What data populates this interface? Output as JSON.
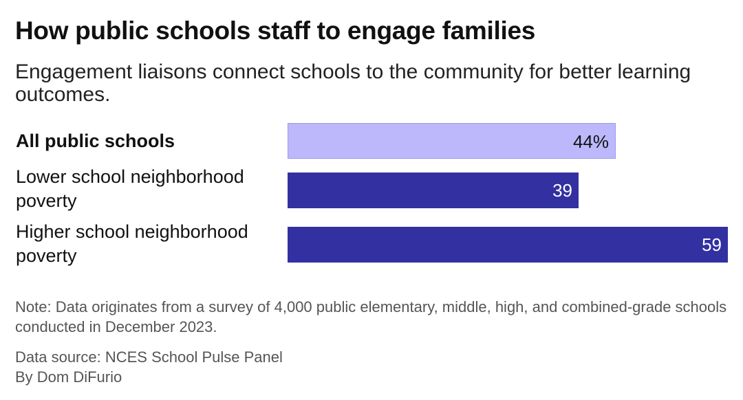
{
  "title": "How public schools staff to engage families",
  "subtitle": "Engagement liaisons connect schools to the community for better learning outcomes.",
  "chart_data": {
    "type": "bar",
    "orientation": "horizontal",
    "categories": [
      "All public schools",
      "Lower school neighborhood poverty",
      "Higher school neighborhood poverty"
    ],
    "values": [
      44,
      39,
      59
    ],
    "value_labels": [
      "44%",
      "39",
      "59"
    ],
    "highlight_category": "All public schools",
    "colors": {
      "highlight_bar": "#bcb8fb",
      "highlight_border": "#9d98ee",
      "bar": "#3330a2",
      "highlight_text": "#111111",
      "bar_text": "#ffffff"
    },
    "xlim": [
      0,
      59
    ],
    "grid": false,
    "legend": "none"
  },
  "footer": {
    "note": "Note: Data originates from a survey of 4,000 public elementary, middle, high, and combined-grade schools conducted in December 2023.",
    "source": "Data source: NCES School Pulse Panel",
    "byline": "By Dom DiFurio"
  }
}
